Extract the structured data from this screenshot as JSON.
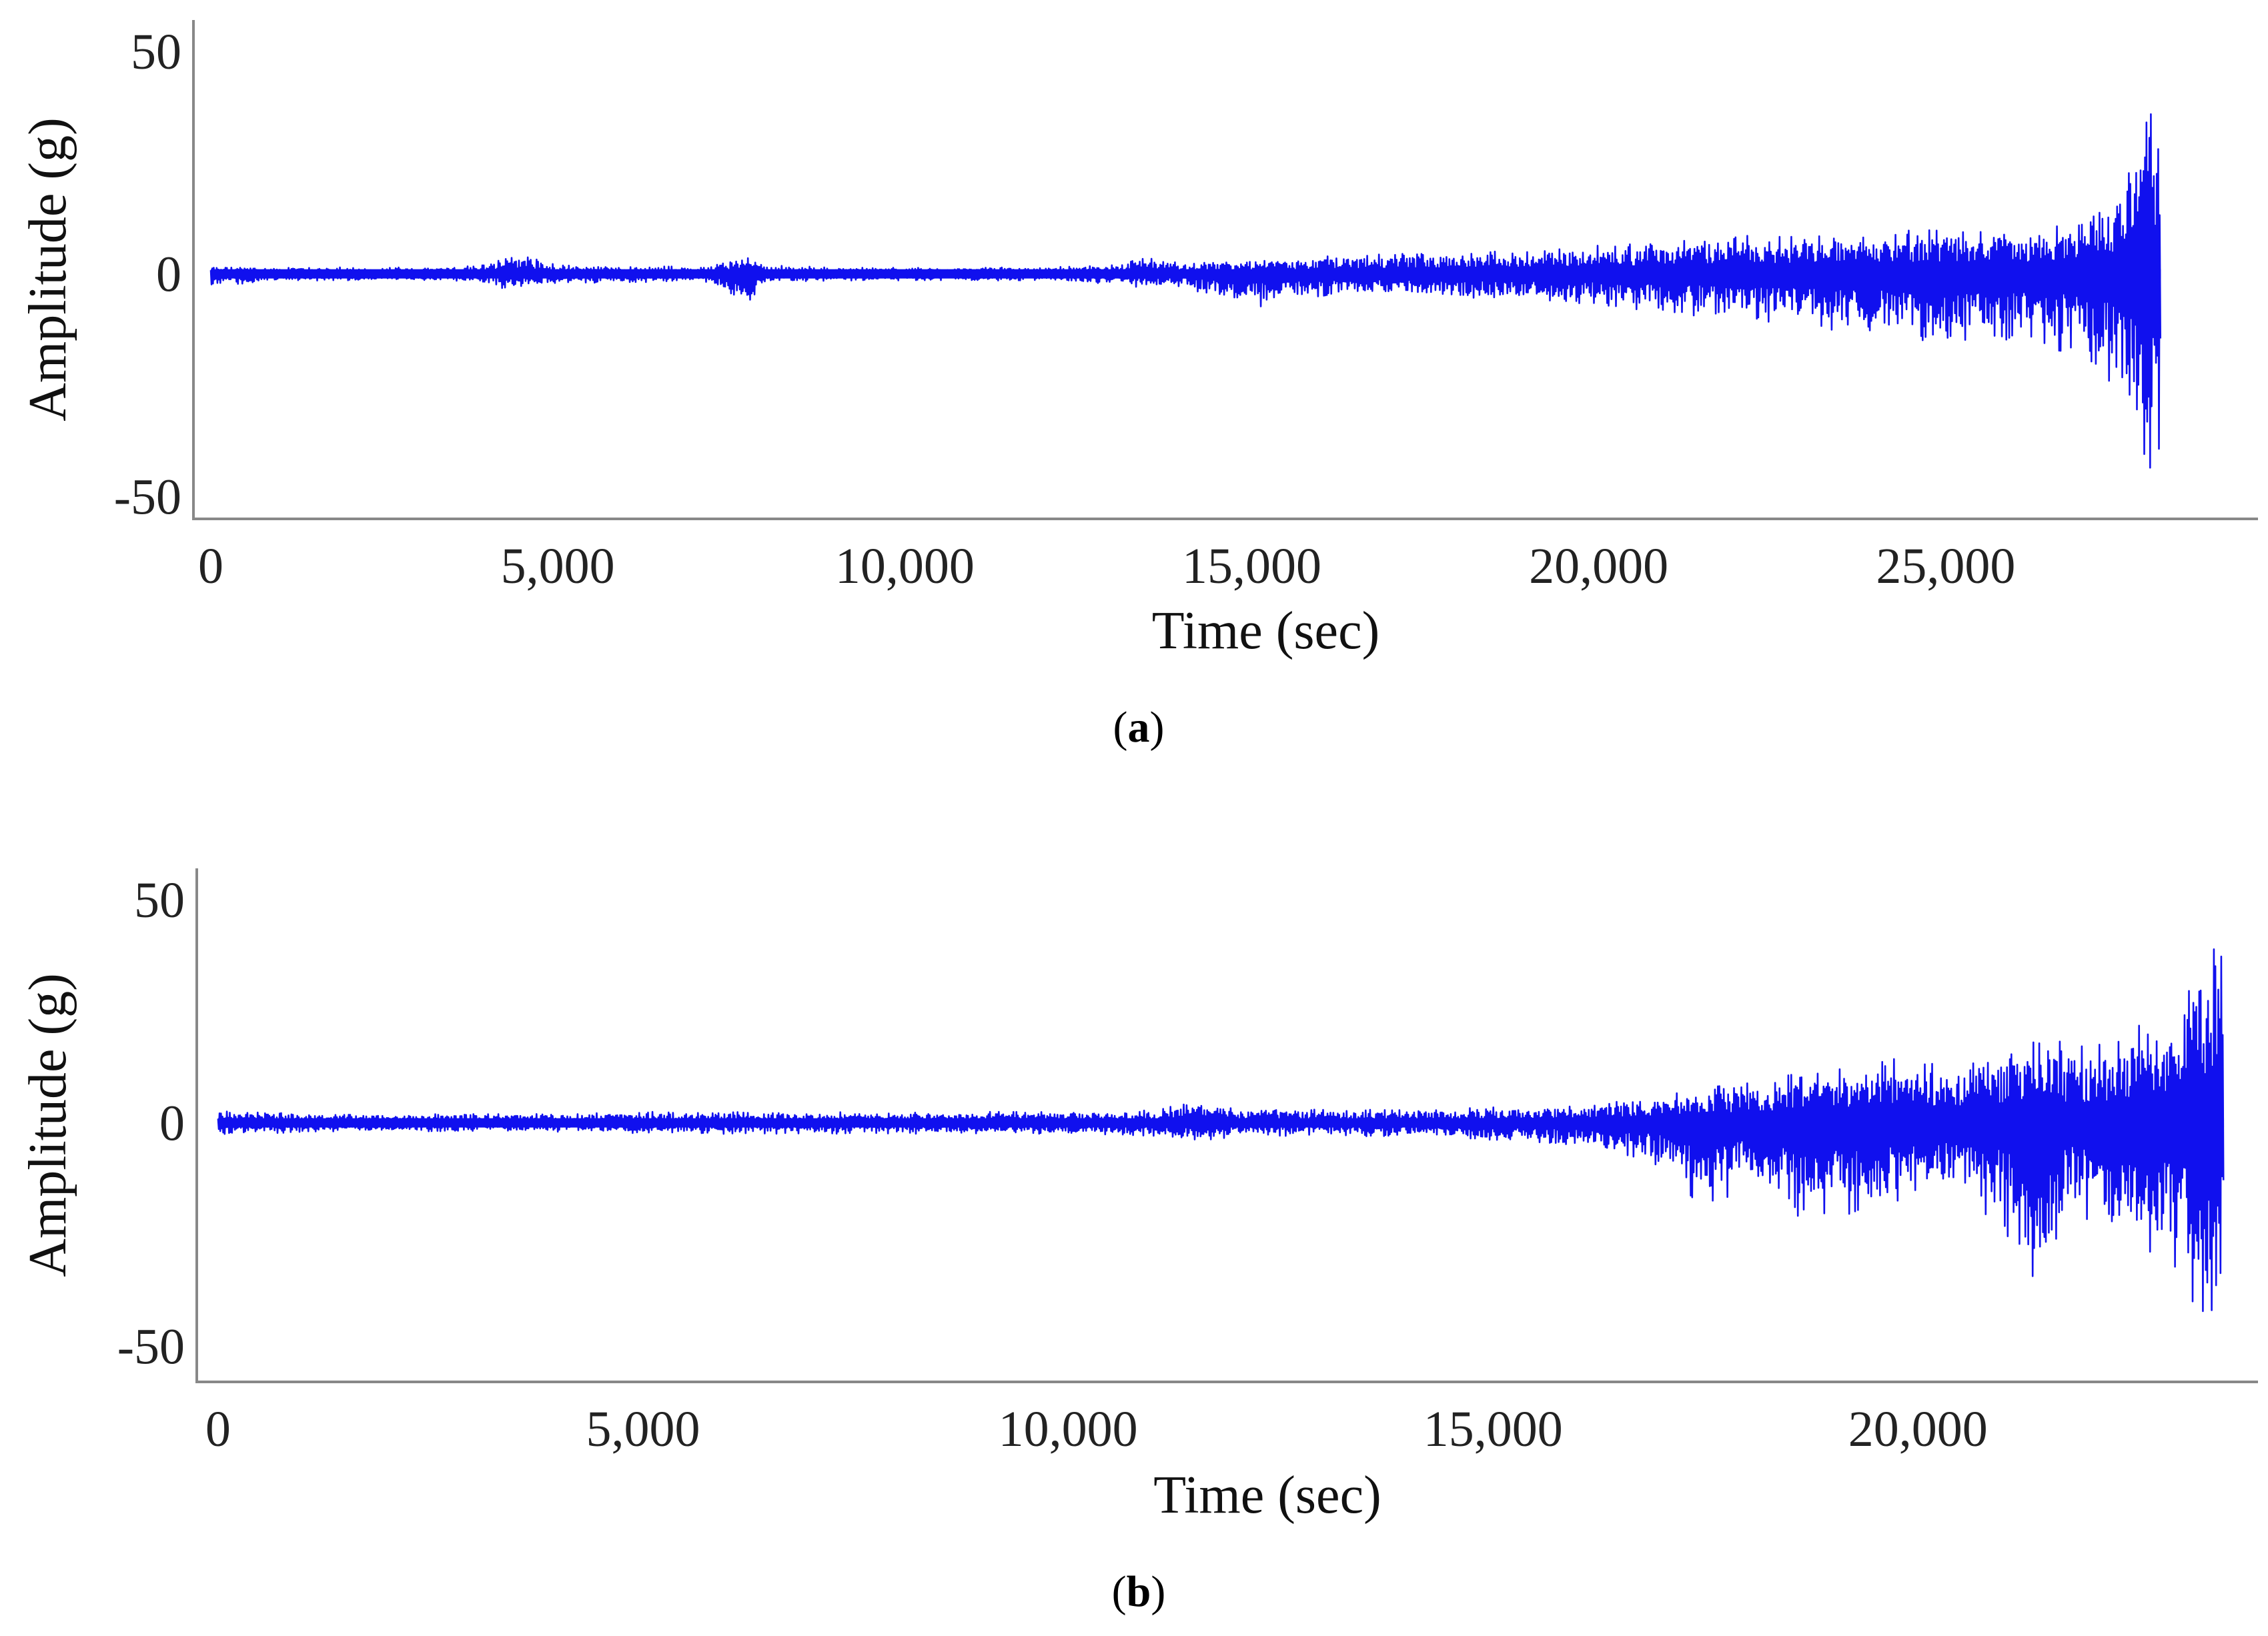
{
  "chart_data": [
    {
      "type": "line",
      "panel_label": "a",
      "xlabel": "Time (sec)",
      "ylabel": "Amplitude (g)",
      "xlim": [
        -250,
        29500
      ],
      "ylim": [
        -55,
        57
      ],
      "x_ticks": [
        0,
        5000,
        10000,
        15000,
        20000,
        25000
      ],
      "x_tick_labels": [
        "0",
        "5,000",
        "10,000",
        "15,000",
        "20,000",
        "25,000"
      ],
      "y_ticks": [
        -50,
        0,
        50
      ],
      "y_tick_labels": [
        "-50",
        "0",
        "50"
      ],
      "grid": false,
      "color": "#1010ee",
      "series": [
        {
          "x": [
            0,
            1000,
            2000,
            3000,
            4000,
            4300,
            5000,
            6000,
            7000,
            7800,
            8000,
            9000,
            10000,
            11000,
            12000,
            13000,
            13300,
            14000,
            15000,
            16000,
            17000,
            18000,
            19000,
            20000,
            21000,
            22000,
            23000,
            24000,
            24500,
            25000,
            25500,
            26000,
            26500,
            27000,
            27400,
            27700,
            28000,
            28100
          ],
          "upper": [
            2,
            1.5,
            1.5,
            1.5,
            2,
            5,
            2,
            2,
            1.5,
            5,
            2,
            1.5,
            1.5,
            1.5,
            1.5,
            2,
            4,
            2.5,
            3,
            4,
            4.5,
            5,
            5.5,
            6.5,
            7.5,
            9,
            9,
            9,
            10,
            10,
            11,
            10,
            11,
            12,
            18,
            28,
            44,
            30
          ],
          "lower": [
            -3,
            -1.5,
            -1.5,
            -1.5,
            -2,
            -4,
            -2,
            -2,
            -1.5,
            -7,
            -2,
            -1.5,
            -1.5,
            -1.5,
            -1.5,
            -2.5,
            -3,
            -3,
            -8,
            -5,
            -5,
            -6,
            -6,
            -7,
            -9,
            -10,
            -12,
            -14,
            -15,
            -16,
            -14,
            -15,
            -17,
            -18,
            -25,
            -38,
            -47,
            -43
          ]
        }
      ]
    },
    {
      "type": "line",
      "panel_label": "b",
      "xlabel": "Time (sec)",
      "ylabel": "Amplitude (g)",
      "xlim": [
        -250,
        24000
      ],
      "ylim": [
        -58,
        57
      ],
      "x_ticks": [
        0,
        5000,
        10000,
        15000,
        20000
      ],
      "x_tick_labels": [
        "0",
        "5,000",
        "10,000",
        "15,000",
        "20,000"
      ],
      "y_ticks": [
        -50,
        0,
        50
      ],
      "y_tick_labels": [
        "-50",
        "0",
        "50"
      ],
      "grid": false,
      "color": "#1010ee",
      "series": [
        {
          "x": [
            0,
            1000,
            2000,
            3000,
            4000,
            5000,
            6000,
            7000,
            8000,
            9000,
            10000,
            11000,
            11600,
            12000,
            13000,
            14000,
            15000,
            16000,
            16500,
            17000,
            17500,
            18000,
            18500,
            19000,
            19500,
            20000,
            20500,
            21000,
            21400,
            21800,
            22200,
            22600,
            23000,
            23300,
            23600
          ],
          "upper": [
            3,
            2,
            2,
            2,
            2,
            2.5,
            2.5,
            2.5,
            2.5,
            2.5,
            2.5,
            3,
            5,
            3,
            3,
            3,
            3.5,
            4,
            5,
            6,
            8,
            9,
            11,
            12,
            14,
            15,
            15,
            16,
            19,
            18,
            18,
            22,
            26,
            38,
            48
          ],
          "lower": [
            -3,
            -2,
            -2,
            -2,
            -2,
            -2.5,
            -2.5,
            -2.5,
            -2.5,
            -2.5,
            -2.5,
            -3,
            -4,
            -3,
            -3,
            -3,
            -4,
            -5,
            -7,
            -10,
            -20,
            -15,
            -22,
            -20,
            -22,
            -15,
            -18,
            -24,
            -40,
            -20,
            -28,
            -28,
            -35,
            -45,
            -48
          ]
        }
      ]
    }
  ]
}
